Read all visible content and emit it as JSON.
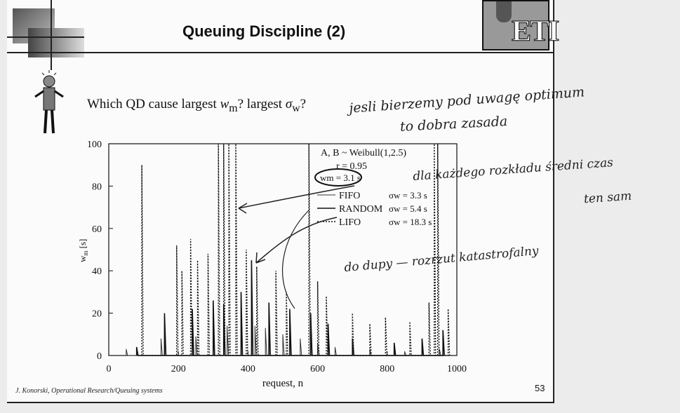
{
  "slide": {
    "title": "Queuing Discipline (2)",
    "question_part1": "Which QD cause largest ",
    "question_var1": "w",
    "question_sub1": "m",
    "question_part2": "? largest ",
    "question_var2": "σ",
    "question_sub2": "w",
    "question_part3": "?",
    "footer": "J. Konorski, Operational Research/Queuing systems",
    "page_number": "53",
    "logo_text": "ETI"
  },
  "handwritten": {
    "note1_line1": "jesli bierzemy pod uwagę optimum",
    "note1_line2": "to dobra zasada",
    "note2_line1": "dla każdego rozkładu średni czas",
    "note2_line2": "ten sam",
    "note3": "do dupy — rozrzut katastrofalny"
  },
  "chart_data": {
    "type": "line",
    "xlabel": "request, n",
    "ylabel": "w",
    "ylabel_sub": "m",
    "ylabel_unit": "[s]",
    "xlim": [
      0,
      1000
    ],
    "ylim": [
      0,
      100
    ],
    "x_ticks": [
      0,
      200,
      400,
      600,
      800,
      1000
    ],
    "y_ticks": [
      0,
      20,
      40,
      60,
      80,
      100
    ],
    "grid": false,
    "annotations": {
      "dist": "A, B ~ Weibull(1,2.5)",
      "rho": "r = 0.95",
      "wm": "wm = 3.1 s"
    },
    "series": [
      {
        "name": "FIFO",
        "sigma": "σw =  3.3 s",
        "style": "solid-thin",
        "peaks": [
          [
            50,
            3
          ],
          [
            150,
            8
          ],
          [
            250,
            9
          ],
          [
            300,
            12
          ],
          [
            340,
            14
          ],
          [
            380,
            12
          ],
          [
            420,
            14
          ],
          [
            450,
            13
          ],
          [
            500,
            10
          ],
          [
            550,
            8
          ],
          [
            600,
            6
          ],
          [
            650,
            4
          ],
          [
            750,
            3
          ],
          [
            850,
            2
          ],
          [
            950,
            3
          ]
        ]
      },
      {
        "name": "RANDOM",
        "sigma": "σw =  5.4 s",
        "style": "solid-thick",
        "peaks": [
          [
            80,
            4
          ],
          [
            160,
            20
          ],
          [
            240,
            22
          ],
          [
            300,
            26
          ],
          [
            330,
            24
          ],
          [
            380,
            30
          ],
          [
            410,
            45
          ],
          [
            460,
            25
          ],
          [
            520,
            22
          ],
          [
            580,
            20
          ],
          [
            630,
            15
          ],
          [
            700,
            8
          ],
          [
            820,
            6
          ],
          [
            900,
            8
          ],
          [
            960,
            12
          ]
        ]
      },
      {
        "name": "LIFO",
        "sigma": "σw = 18.3 s",
        "style": "dotted",
        "peaks": [
          [
            95,
            90
          ],
          [
            195,
            52
          ],
          [
            210,
            40
          ],
          [
            235,
            55
          ],
          [
            255,
            45
          ],
          [
            285,
            48
          ],
          [
            315,
            100
          ],
          [
            330,
            100
          ],
          [
            345,
            100
          ],
          [
            365,
            100
          ],
          [
            395,
            50
          ],
          [
            425,
            42
          ],
          [
            480,
            40
          ],
          [
            510,
            30
          ],
          [
            575,
            100
          ],
          [
            600,
            35
          ],
          [
            625,
            28
          ],
          [
            700,
            20
          ],
          [
            750,
            15
          ],
          [
            795,
            18
          ],
          [
            865,
            16
          ],
          [
            920,
            25
          ],
          [
            935,
            100
          ],
          [
            945,
            100
          ],
          [
            975,
            22
          ]
        ]
      }
    ]
  }
}
